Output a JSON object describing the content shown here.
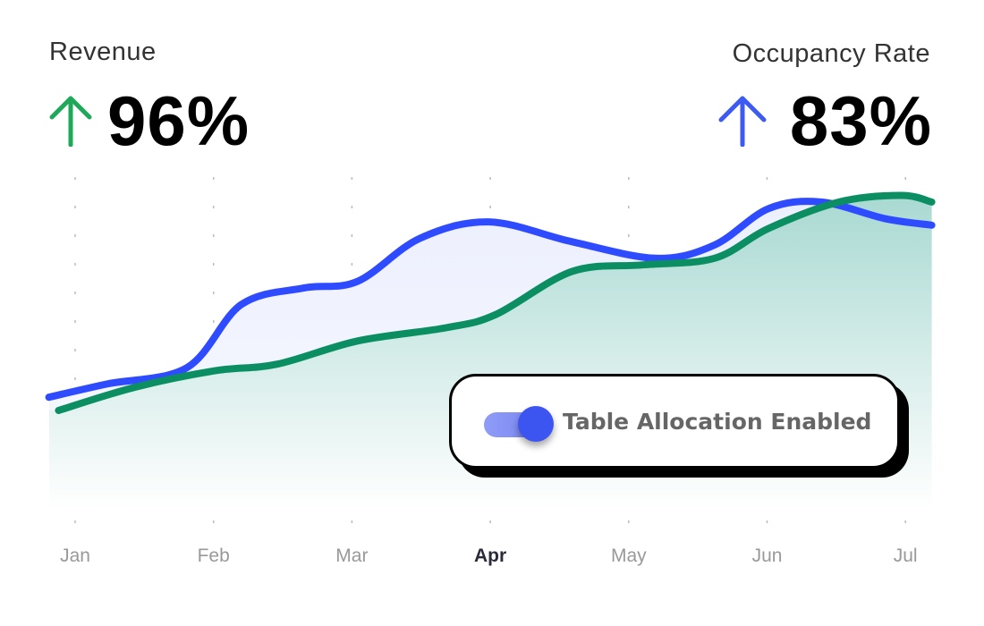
{
  "kpis": {
    "revenue": {
      "label": "Revenue",
      "value": "96%",
      "trend": "up",
      "color": "#1fa85a",
      "icon": "arrow-up-icon"
    },
    "occupancy": {
      "label": "Occupancy Rate",
      "value": "83%",
      "trend": "up",
      "color": "#3d5af1",
      "icon": "arrow-up-icon"
    }
  },
  "toggle": {
    "label": "Table Allocation Enabled",
    "checked": true,
    "color": "#3d55f0"
  },
  "chart_data": {
    "type": "line",
    "categories": [
      "Jan",
      "Feb",
      "Mar",
      "Apr",
      "May",
      "Jun",
      "Jul"
    ],
    "highlighted_category": "Apr",
    "grid": "vertical dotted",
    "y_axis": "hidden",
    "series": [
      {
        "color": "#2f4bff",
        "fill": "#eef0fd",
        "points": [
          [
            -0.19,
            34
          ],
          [
            0.23,
            38
          ],
          [
            0.81,
            43
          ],
          [
            1.2,
            62
          ],
          [
            1.65,
            67
          ],
          [
            2.04,
            69
          ],
          [
            2.49,
            82
          ],
          [
            2.99,
            87
          ],
          [
            3.59,
            81
          ],
          [
            4.2,
            76
          ],
          [
            4.62,
            80
          ],
          [
            5.01,
            91
          ],
          [
            5.39,
            93
          ],
          [
            5.85,
            88
          ],
          [
            6.19,
            86
          ]
        ]
      },
      {
        "color": "#0b8f62",
        "fill": "#a9d9d2",
        "points": [
          [
            -0.12,
            30
          ],
          [
            0.43,
            37
          ],
          [
            1.01,
            42
          ],
          [
            1.46,
            44
          ],
          [
            2.04,
            51
          ],
          [
            2.68,
            55
          ],
          [
            3.04,
            59
          ],
          [
            3.59,
            72
          ],
          [
            4.1,
            74
          ],
          [
            4.62,
            76
          ],
          [
            5.01,
            85
          ],
          [
            5.52,
            93
          ],
          [
            5.97,
            95
          ],
          [
            6.19,
            93
          ]
        ]
      }
    ]
  }
}
